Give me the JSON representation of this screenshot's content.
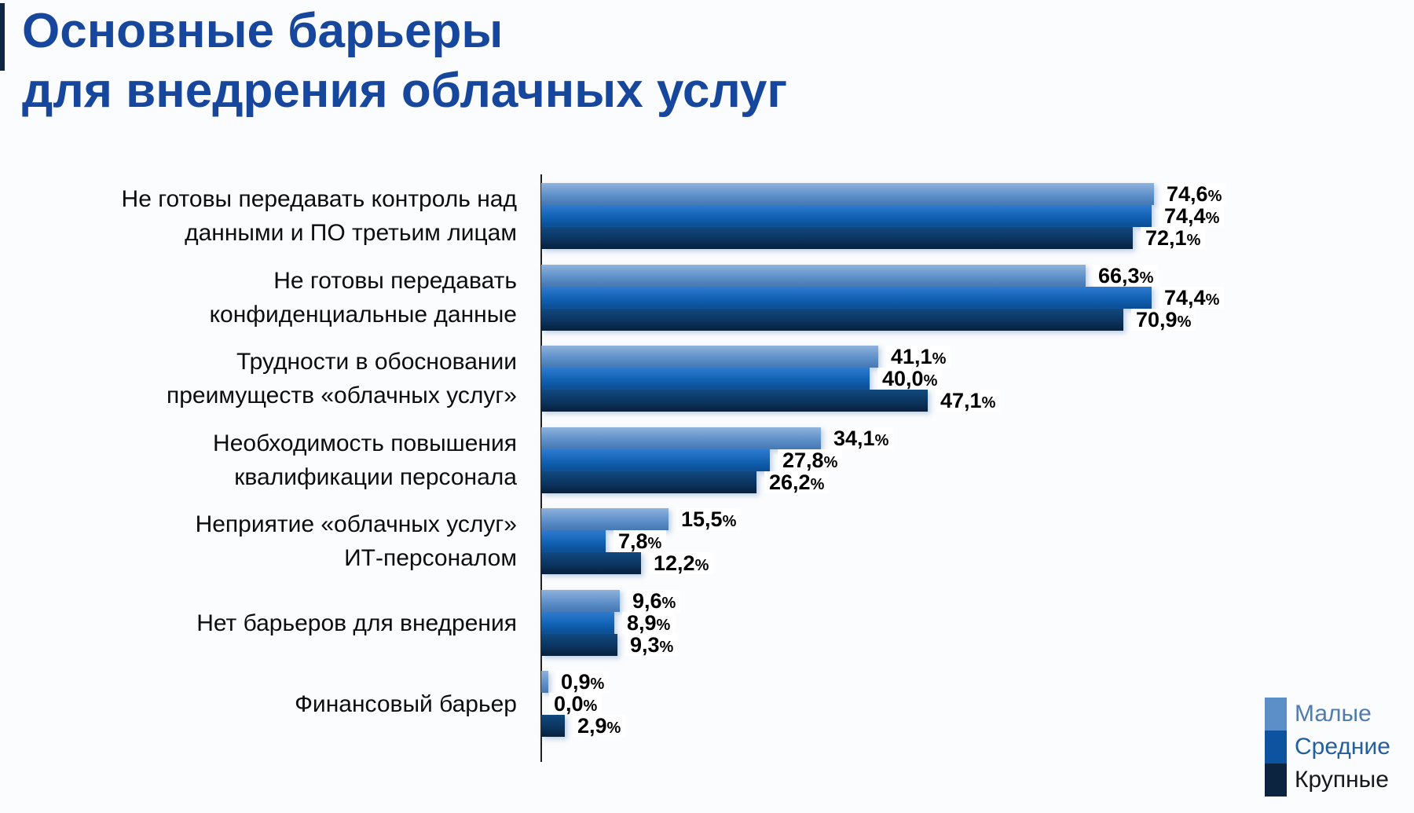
{
  "page": {
    "title_line1": "Основные барьеры",
    "title_line2": "для внедрения облачных услуг"
  },
  "colors": {
    "background": "#FBFCFD",
    "title_text": "#17479C",
    "accent_strip": "#102744",
    "axis_line": "#1F1F1F",
    "category_text": "#0D0D0D",
    "value_label_text": "#000000"
  },
  "legend": {
    "position": "bottom-right",
    "items": [
      {
        "label": "Малые",
        "swatch": "#5C8EC8",
        "text_color": "#4E7CB1"
      },
      {
        "label": "Средние",
        "swatch": "#0D53A0",
        "text_color": "#255E9E"
      },
      {
        "label": "Крупные",
        "swatch": "#0C2440",
        "text_color": "#15191E"
      }
    ]
  },
  "chart_data": {
    "type": "bar",
    "orientation": "horizontal",
    "grid": false,
    "xlim": [
      0,
      80
    ],
    "value_suffix": "%",
    "decimal_separator": ",",
    "title": "Основные барьеры для внедрения облачных услуг",
    "categories": [
      [
        "Не готовы передавать контроль над",
        "данными и ПО третьим лицам"
      ],
      [
        "Не готовы передавать",
        "конфиденциальные данные"
      ],
      [
        "Трудности в обосновании",
        "преимуществ «облачных услуг»"
      ],
      [
        "Необходимость повышения",
        "квалификации персонала"
      ],
      [
        "Неприятие «облачных услуг»",
        "ИТ-персоналом"
      ],
      [
        "Нет барьеров для внедрения"
      ],
      [
        "Финансовый барьер"
      ]
    ],
    "series": [
      {
        "name": "Малые",
        "values": [
          74.6,
          66.3,
          41.1,
          34.1,
          15.5,
          9.6,
          0.9
        ],
        "labels": [
          "74,6",
          "66,3",
          "41,1",
          "34,1",
          "15,5",
          "9,6",
          "0,9"
        ],
        "color": {
          "top": "#8FB3DC",
          "mid": "#5E90C9",
          "bottom": "#4577B3"
        }
      },
      {
        "name": "Средние",
        "values": [
          74.4,
          74.4,
          40.0,
          27.8,
          7.8,
          8.9,
          0.0
        ],
        "labels": [
          "74,4",
          "74,4",
          "40,0",
          "27,8",
          "7,8",
          "8,9",
          "0,0"
        ],
        "color": {
          "top": "#2E7BD0",
          "mid": "#1162B4",
          "bottom": "#0B4C92"
        }
      },
      {
        "name": "Крупные",
        "values": [
          72.1,
          70.9,
          47.1,
          26.2,
          12.2,
          9.3,
          2.9
        ],
        "labels": [
          "72,1",
          "70,9",
          "47,1",
          "26,2",
          "12,2",
          "9,3",
          "2,9"
        ],
        "color": {
          "top": "#11497F",
          "mid": "#0B3560",
          "bottom": "#08203C"
        }
      }
    ]
  }
}
